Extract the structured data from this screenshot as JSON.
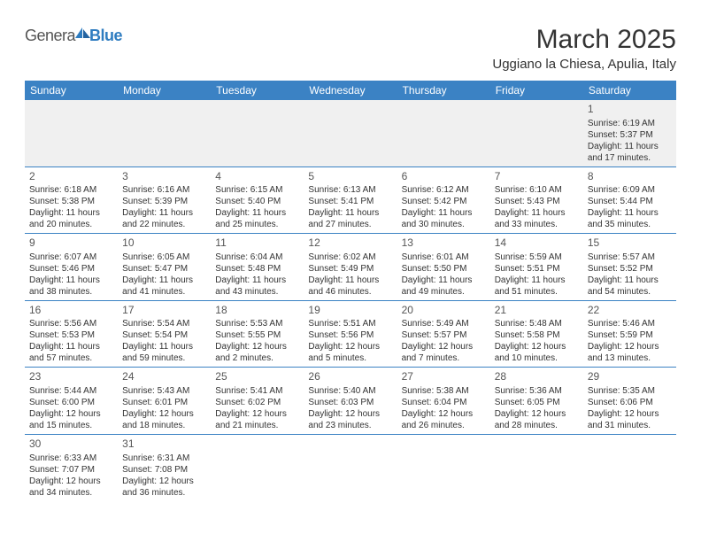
{
  "logo": {
    "text1": "Genera",
    "text2": "Blue"
  },
  "title": "March 2025",
  "location": "Uggiano la Chiesa, Apulia, Italy",
  "headers": [
    "Sunday",
    "Monday",
    "Tuesday",
    "Wednesday",
    "Thursday",
    "Friday",
    "Saturday"
  ],
  "colors": {
    "header_bg": "#3b82c4",
    "header_fg": "#ffffff",
    "border": "#3b82c4",
    "firstrow_bg": "#f0f0f0",
    "text": "#333333",
    "daynum": "#555555",
    "logo_gray": "#555555",
    "logo_blue": "#2e7cc0"
  },
  "weeks": [
    [
      null,
      null,
      null,
      null,
      null,
      null,
      {
        "n": "1",
        "sr": "Sunrise: 6:19 AM",
        "ss": "Sunset: 5:37 PM",
        "d1": "Daylight: 11 hours",
        "d2": "and 17 minutes."
      }
    ],
    [
      {
        "n": "2",
        "sr": "Sunrise: 6:18 AM",
        "ss": "Sunset: 5:38 PM",
        "d1": "Daylight: 11 hours",
        "d2": "and 20 minutes."
      },
      {
        "n": "3",
        "sr": "Sunrise: 6:16 AM",
        "ss": "Sunset: 5:39 PM",
        "d1": "Daylight: 11 hours",
        "d2": "and 22 minutes."
      },
      {
        "n": "4",
        "sr": "Sunrise: 6:15 AM",
        "ss": "Sunset: 5:40 PM",
        "d1": "Daylight: 11 hours",
        "d2": "and 25 minutes."
      },
      {
        "n": "5",
        "sr": "Sunrise: 6:13 AM",
        "ss": "Sunset: 5:41 PM",
        "d1": "Daylight: 11 hours",
        "d2": "and 27 minutes."
      },
      {
        "n": "6",
        "sr": "Sunrise: 6:12 AM",
        "ss": "Sunset: 5:42 PM",
        "d1": "Daylight: 11 hours",
        "d2": "and 30 minutes."
      },
      {
        "n": "7",
        "sr": "Sunrise: 6:10 AM",
        "ss": "Sunset: 5:43 PM",
        "d1": "Daylight: 11 hours",
        "d2": "and 33 minutes."
      },
      {
        "n": "8",
        "sr": "Sunrise: 6:09 AM",
        "ss": "Sunset: 5:44 PM",
        "d1": "Daylight: 11 hours",
        "d2": "and 35 minutes."
      }
    ],
    [
      {
        "n": "9",
        "sr": "Sunrise: 6:07 AM",
        "ss": "Sunset: 5:46 PM",
        "d1": "Daylight: 11 hours",
        "d2": "and 38 minutes."
      },
      {
        "n": "10",
        "sr": "Sunrise: 6:05 AM",
        "ss": "Sunset: 5:47 PM",
        "d1": "Daylight: 11 hours",
        "d2": "and 41 minutes."
      },
      {
        "n": "11",
        "sr": "Sunrise: 6:04 AM",
        "ss": "Sunset: 5:48 PM",
        "d1": "Daylight: 11 hours",
        "d2": "and 43 minutes."
      },
      {
        "n": "12",
        "sr": "Sunrise: 6:02 AM",
        "ss": "Sunset: 5:49 PM",
        "d1": "Daylight: 11 hours",
        "d2": "and 46 minutes."
      },
      {
        "n": "13",
        "sr": "Sunrise: 6:01 AM",
        "ss": "Sunset: 5:50 PM",
        "d1": "Daylight: 11 hours",
        "d2": "and 49 minutes."
      },
      {
        "n": "14",
        "sr": "Sunrise: 5:59 AM",
        "ss": "Sunset: 5:51 PM",
        "d1": "Daylight: 11 hours",
        "d2": "and 51 minutes."
      },
      {
        "n": "15",
        "sr": "Sunrise: 5:57 AM",
        "ss": "Sunset: 5:52 PM",
        "d1": "Daylight: 11 hours",
        "d2": "and 54 minutes."
      }
    ],
    [
      {
        "n": "16",
        "sr": "Sunrise: 5:56 AM",
        "ss": "Sunset: 5:53 PM",
        "d1": "Daylight: 11 hours",
        "d2": "and 57 minutes."
      },
      {
        "n": "17",
        "sr": "Sunrise: 5:54 AM",
        "ss": "Sunset: 5:54 PM",
        "d1": "Daylight: 11 hours",
        "d2": "and 59 minutes."
      },
      {
        "n": "18",
        "sr": "Sunrise: 5:53 AM",
        "ss": "Sunset: 5:55 PM",
        "d1": "Daylight: 12 hours",
        "d2": "and 2 minutes."
      },
      {
        "n": "19",
        "sr": "Sunrise: 5:51 AM",
        "ss": "Sunset: 5:56 PM",
        "d1": "Daylight: 12 hours",
        "d2": "and 5 minutes."
      },
      {
        "n": "20",
        "sr": "Sunrise: 5:49 AM",
        "ss": "Sunset: 5:57 PM",
        "d1": "Daylight: 12 hours",
        "d2": "and 7 minutes."
      },
      {
        "n": "21",
        "sr": "Sunrise: 5:48 AM",
        "ss": "Sunset: 5:58 PM",
        "d1": "Daylight: 12 hours",
        "d2": "and 10 minutes."
      },
      {
        "n": "22",
        "sr": "Sunrise: 5:46 AM",
        "ss": "Sunset: 5:59 PM",
        "d1": "Daylight: 12 hours",
        "d2": "and 13 minutes."
      }
    ],
    [
      {
        "n": "23",
        "sr": "Sunrise: 5:44 AM",
        "ss": "Sunset: 6:00 PM",
        "d1": "Daylight: 12 hours",
        "d2": "and 15 minutes."
      },
      {
        "n": "24",
        "sr": "Sunrise: 5:43 AM",
        "ss": "Sunset: 6:01 PM",
        "d1": "Daylight: 12 hours",
        "d2": "and 18 minutes."
      },
      {
        "n": "25",
        "sr": "Sunrise: 5:41 AM",
        "ss": "Sunset: 6:02 PM",
        "d1": "Daylight: 12 hours",
        "d2": "and 21 minutes."
      },
      {
        "n": "26",
        "sr": "Sunrise: 5:40 AM",
        "ss": "Sunset: 6:03 PM",
        "d1": "Daylight: 12 hours",
        "d2": "and 23 minutes."
      },
      {
        "n": "27",
        "sr": "Sunrise: 5:38 AM",
        "ss": "Sunset: 6:04 PM",
        "d1": "Daylight: 12 hours",
        "d2": "and 26 minutes."
      },
      {
        "n": "28",
        "sr": "Sunrise: 5:36 AM",
        "ss": "Sunset: 6:05 PM",
        "d1": "Daylight: 12 hours",
        "d2": "and 28 minutes."
      },
      {
        "n": "29",
        "sr": "Sunrise: 5:35 AM",
        "ss": "Sunset: 6:06 PM",
        "d1": "Daylight: 12 hours",
        "d2": "and 31 minutes."
      }
    ],
    [
      {
        "n": "30",
        "sr": "Sunrise: 6:33 AM",
        "ss": "Sunset: 7:07 PM",
        "d1": "Daylight: 12 hours",
        "d2": "and 34 minutes."
      },
      {
        "n": "31",
        "sr": "Sunrise: 6:31 AM",
        "ss": "Sunset: 7:08 PM",
        "d1": "Daylight: 12 hours",
        "d2": "and 36 minutes."
      },
      null,
      null,
      null,
      null,
      null
    ]
  ]
}
